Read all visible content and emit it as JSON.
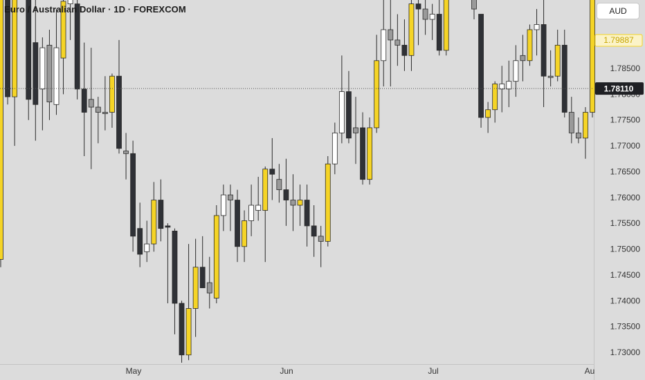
{
  "header": {
    "title": "Euro / Australian Dollar · 1D · FOREXCOM",
    "currency_button": "AUD"
  },
  "price_labels": {
    "last_price": "1.79887",
    "crosshair_price": "1.78110"
  },
  "colors": {
    "background": "#dcdcdc",
    "up": "#f5d426",
    "down": "#2f3136",
    "doji": "#9a9a9a",
    "hollow": "#ffffff",
    "wick": "#2a2a2a"
  },
  "chart_data": {
    "type": "candlestick",
    "title": "Euro / Australian Dollar · 1D · FOREXCOM",
    "ylim": [
      1.7275,
      1.8012
    ],
    "y_ticks": [
      "1.78500",
      "1.78000",
      "1.77500",
      "1.77000",
      "1.76500",
      "1.76000",
      "1.75500",
      "1.75000",
      "1.74500",
      "1.74000",
      "1.73500",
      "1.73000"
    ],
    "x_ticks": [
      "May",
      "Jun",
      "Jul",
      "Au"
    ],
    "crosshair_price": 1.7811,
    "last_price": 1.79887,
    "candles": [
      {
        "o": 1.748,
        "h": 1.802,
        "l": 1.7465,
        "c": 1.802,
        "k": "up"
      },
      {
        "o": 1.808,
        "h": 1.815,
        "l": 1.778,
        "c": 1.7795,
        "k": "down"
      },
      {
        "o": 1.8,
        "h": 1.804,
        "l": 1.77,
        "c": 1.7795,
        "k": "up"
      },
      {
        "o": 1.812,
        "h": 1.818,
        "l": 1.8,
        "c": 1.8,
        "k": "down"
      },
      {
        "o": 1.7995,
        "h": 1.805,
        "l": 1.775,
        "c": 1.779,
        "k": "down"
      },
      {
        "o": 1.79,
        "h": 1.8,
        "l": 1.771,
        "c": 1.778,
        "k": "down"
      },
      {
        "o": 1.781,
        "h": 1.791,
        "l": 1.773,
        "c": 1.789,
        "k": "hollow"
      },
      {
        "o": 1.7785,
        "h": 1.7925,
        "l": 1.775,
        "c": 1.7895,
        "k": "doji"
      },
      {
        "o": 1.778,
        "h": 1.7965,
        "l": 1.776,
        "c": 1.789,
        "k": "hollow"
      },
      {
        "o": 1.787,
        "h": 1.8,
        "l": 1.78,
        "c": 1.798,
        "k": "up"
      },
      {
        "o": 1.7975,
        "h": 1.7985,
        "l": 1.7905,
        "c": 1.7985,
        "k": "hollow"
      },
      {
        "o": 1.7975,
        "h": 1.7985,
        "l": 1.779,
        "c": 1.781,
        "k": "down"
      },
      {
        "o": 1.781,
        "h": 1.79,
        "l": 1.768,
        "c": 1.7765,
        "k": "down"
      },
      {
        "o": 1.7775,
        "h": 1.789,
        "l": 1.7655,
        "c": 1.779,
        "k": "doji"
      },
      {
        "o": 1.7775,
        "h": 1.7795,
        "l": 1.7705,
        "c": 1.7765,
        "k": "doji"
      },
      {
        "o": 1.7765,
        "h": 1.7835,
        "l": 1.773,
        "c": 1.7765,
        "k": "doji"
      },
      {
        "o": 1.7765,
        "h": 1.784,
        "l": 1.7735,
        "c": 1.7835,
        "k": "up"
      },
      {
        "o": 1.7835,
        "h": 1.7905,
        "l": 1.7685,
        "c": 1.7695,
        "k": "down"
      },
      {
        "o": 1.769,
        "h": 1.7725,
        "l": 1.7635,
        "c": 1.7685,
        "k": "doji"
      },
      {
        "o": 1.7685,
        "h": 1.771,
        "l": 1.7495,
        "c": 1.7525,
        "k": "down"
      },
      {
        "o": 1.754,
        "h": 1.759,
        "l": 1.7465,
        "c": 1.749,
        "k": "down"
      },
      {
        "o": 1.7495,
        "h": 1.7555,
        "l": 1.7475,
        "c": 1.751,
        "k": "hollow"
      },
      {
        "o": 1.751,
        "h": 1.763,
        "l": 1.7495,
        "c": 1.7595,
        "k": "up"
      },
      {
        "o": 1.7595,
        "h": 1.7635,
        "l": 1.7515,
        "c": 1.754,
        "k": "down"
      },
      {
        "o": 1.7545,
        "h": 1.755,
        "l": 1.7395,
        "c": 1.7545,
        "k": "down"
      },
      {
        "o": 1.7535,
        "h": 1.754,
        "l": 1.7335,
        "c": 1.7395,
        "k": "down"
      },
      {
        "o": 1.7395,
        "h": 1.74,
        "l": 1.728,
        "c": 1.7295,
        "k": "down"
      },
      {
        "o": 1.7295,
        "h": 1.751,
        "l": 1.7285,
        "c": 1.7385,
        "k": "up"
      },
      {
        "o": 1.7385,
        "h": 1.752,
        "l": 1.733,
        "c": 1.7465,
        "k": "up"
      },
      {
        "o": 1.7465,
        "h": 1.7525,
        "l": 1.7425,
        "c": 1.7425,
        "k": "down"
      },
      {
        "o": 1.7415,
        "h": 1.7485,
        "l": 1.7385,
        "c": 1.7435,
        "k": "doji"
      },
      {
        "o": 1.7405,
        "h": 1.7585,
        "l": 1.7395,
        "c": 1.7565,
        "k": "up"
      },
      {
        "o": 1.7565,
        "h": 1.7625,
        "l": 1.7535,
        "c": 1.7605,
        "k": "hollow"
      },
      {
        "o": 1.7595,
        "h": 1.7625,
        "l": 1.7535,
        "c": 1.7605,
        "k": "doji"
      },
      {
        "o": 1.7595,
        "h": 1.7615,
        "l": 1.7475,
        "c": 1.7505,
        "k": "down"
      },
      {
        "o": 1.7505,
        "h": 1.7575,
        "l": 1.7475,
        "c": 1.7555,
        "k": "up"
      },
      {
        "o": 1.7555,
        "h": 1.7625,
        "l": 1.7525,
        "c": 1.7585,
        "k": "hollow"
      },
      {
        "o": 1.7585,
        "h": 1.764,
        "l": 1.7555,
        "c": 1.7575,
        "k": "hollow"
      },
      {
        "o": 1.7575,
        "h": 1.766,
        "l": 1.7475,
        "c": 1.7655,
        "k": "up"
      },
      {
        "o": 1.7655,
        "h": 1.7715,
        "l": 1.7595,
        "c": 1.7645,
        "k": "down"
      },
      {
        "o": 1.7635,
        "h": 1.7665,
        "l": 1.759,
        "c": 1.7615,
        "k": "doji"
      },
      {
        "o": 1.7615,
        "h": 1.7675,
        "l": 1.7545,
        "c": 1.7595,
        "k": "down"
      },
      {
        "o": 1.7595,
        "h": 1.7645,
        "l": 1.7535,
        "c": 1.7585,
        "k": "doji"
      },
      {
        "o": 1.7585,
        "h": 1.7625,
        "l": 1.7545,
        "c": 1.7595,
        "k": "up"
      },
      {
        "o": 1.7595,
        "h": 1.7625,
        "l": 1.7505,
        "c": 1.7545,
        "k": "down"
      },
      {
        "o": 1.7545,
        "h": 1.7585,
        "l": 1.7485,
        "c": 1.7525,
        "k": "down"
      },
      {
        "o": 1.7525,
        "h": 1.7545,
        "l": 1.7465,
        "c": 1.7515,
        "k": "doji"
      },
      {
        "o": 1.7515,
        "h": 1.768,
        "l": 1.7505,
        "c": 1.7665,
        "k": "up"
      },
      {
        "o": 1.7665,
        "h": 1.7745,
        "l": 1.7645,
        "c": 1.7725,
        "k": "hollow"
      },
      {
        "o": 1.7725,
        "h": 1.7875,
        "l": 1.7705,
        "c": 1.7805,
        "k": "hollow"
      },
      {
        "o": 1.7805,
        "h": 1.7845,
        "l": 1.7705,
        "c": 1.7715,
        "k": "down"
      },
      {
        "o": 1.7725,
        "h": 1.7795,
        "l": 1.7665,
        "c": 1.7735,
        "k": "doji"
      },
      {
        "o": 1.7735,
        "h": 1.7765,
        "l": 1.7625,
        "c": 1.7635,
        "k": "down"
      },
      {
        "o": 1.7635,
        "h": 1.7755,
        "l": 1.7625,
        "c": 1.7735,
        "k": "up"
      },
      {
        "o": 1.7735,
        "h": 1.7915,
        "l": 1.7725,
        "c": 1.7865,
        "k": "up"
      },
      {
        "o": 1.7865,
        "h": 1.8025,
        "l": 1.7815,
        "c": 1.7925,
        "k": "hollow"
      },
      {
        "o": 1.7925,
        "h": 1.7985,
        "l": 1.7815,
        "c": 1.7905,
        "k": "doji"
      },
      {
        "o": 1.7905,
        "h": 1.7955,
        "l": 1.7855,
        "c": 1.7895,
        "k": "doji"
      },
      {
        "o": 1.7895,
        "h": 1.7945,
        "l": 1.7845,
        "c": 1.7875,
        "k": "down"
      },
      {
        "o": 1.7875,
        "h": 1.7985,
        "l": 1.7845,
        "c": 1.7975,
        "k": "up"
      },
      {
        "o": 1.7975,
        "h": 1.8015,
        "l": 1.7895,
        "c": 1.7965,
        "k": "down"
      },
      {
        "o": 1.7965,
        "h": 1.8015,
        "l": 1.7915,
        "c": 1.7945,
        "k": "doji"
      },
      {
        "o": 1.7945,
        "h": 1.7975,
        "l": 1.7905,
        "c": 1.7955,
        "k": "hollow"
      },
      {
        "o": 1.7955,
        "h": 1.8015,
        "l": 1.7875,
        "c": 1.7885,
        "k": "down"
      },
      {
        "o": 1.7885,
        "h": 1.8015,
        "l": 1.7875,
        "c": 1.8005,
        "k": "up"
      },
      {
        "o": 1.8005,
        "h": 1.8015,
        "l": 1.7995,
        "c": 1.8005,
        "k": "hollow"
      },
      {
        "o": 1.8005,
        "h": 1.8015,
        "l": 1.7995,
        "c": 1.8005,
        "k": "hollow"
      },
      {
        "o": 1.8005,
        "h": 1.8015,
        "l": 1.7985,
        "c": 1.7995,
        "k": "down"
      },
      {
        "o": 1.7995,
        "h": 1.8015,
        "l": 1.7945,
        "c": 1.7965,
        "k": "doji"
      },
      {
        "o": 1.7955,
        "h": 1.7955,
        "l": 1.7735,
        "c": 1.7755,
        "k": "down"
      },
      {
        "o": 1.7755,
        "h": 1.7785,
        "l": 1.7725,
        "c": 1.777,
        "k": "up"
      },
      {
        "o": 1.777,
        "h": 1.7825,
        "l": 1.7745,
        "c": 1.782,
        "k": "up"
      },
      {
        "o": 1.782,
        "h": 1.7855,
        "l": 1.7765,
        "c": 1.781,
        "k": "hollow"
      },
      {
        "o": 1.781,
        "h": 1.7865,
        "l": 1.7775,
        "c": 1.7825,
        "k": "hollow"
      },
      {
        "o": 1.7825,
        "h": 1.7895,
        "l": 1.7795,
        "c": 1.7865,
        "k": "hollow"
      },
      {
        "o": 1.7865,
        "h": 1.7915,
        "l": 1.7825,
        "c": 1.7875,
        "k": "doji"
      },
      {
        "o": 1.7865,
        "h": 1.7935,
        "l": 1.7855,
        "c": 1.7925,
        "k": "up"
      },
      {
        "o": 1.7925,
        "h": 1.7965,
        "l": 1.7875,
        "c": 1.7935,
        "k": "hollow"
      },
      {
        "o": 1.7935,
        "h": 1.8005,
        "l": 1.7775,
        "c": 1.7835,
        "k": "down"
      },
      {
        "o": 1.7835,
        "h": 1.7885,
        "l": 1.7815,
        "c": 1.7835,
        "k": "doji"
      },
      {
        "o": 1.7835,
        "h": 1.7925,
        "l": 1.7825,
        "c": 1.7895,
        "k": "up"
      },
      {
        "o": 1.7895,
        "h": 1.7925,
        "l": 1.7755,
        "c": 1.7765,
        "k": "down"
      },
      {
        "o": 1.7765,
        "h": 1.7795,
        "l": 1.7705,
        "c": 1.7725,
        "k": "doji"
      },
      {
        "o": 1.7725,
        "h": 1.7755,
        "l": 1.7705,
        "c": 1.7715,
        "k": "doji"
      },
      {
        "o": 1.7715,
        "h": 1.7775,
        "l": 1.7675,
        "c": 1.7765,
        "k": "up"
      },
      {
        "o": 1.7765,
        "h": 1.7995,
        "l": 1.7755,
        "c": 1.7989,
        "k": "up"
      }
    ]
  }
}
